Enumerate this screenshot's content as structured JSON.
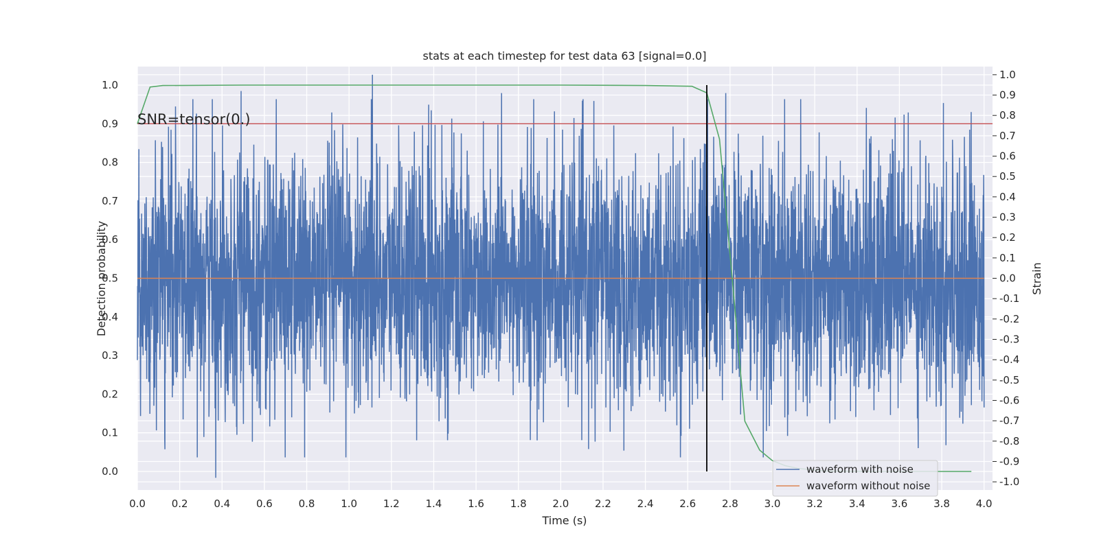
{
  "chart_data": {
    "type": "line",
    "title": "stats at each timestep for test data 63 [signal=0.0]",
    "xlabel": "Time (s)",
    "ylabel_left": "Detection probability",
    "ylabel_right": "Strain",
    "xlim": [
      0.0,
      4.04
    ],
    "ylim_left": [
      -0.048,
      1.048
    ],
    "ylim_right": [
      -1.04,
      1.04
    ],
    "xticks": [
      "0.0",
      "0.2",
      "0.4",
      "0.6",
      "0.8",
      "1.0",
      "1.2",
      "1.4",
      "1.6",
      "1.8",
      "2.0",
      "2.2",
      "2.4",
      "2.6",
      "2.8",
      "3.0",
      "3.2",
      "3.4",
      "3.6",
      "3.8",
      "4.0"
    ],
    "yticks_left": [
      "0.0",
      "0.1",
      "0.2",
      "0.3",
      "0.4",
      "0.5",
      "0.6",
      "0.7",
      "0.8",
      "0.9",
      "1.0"
    ],
    "yticks_right": [
      "-1.0",
      "-0.9",
      "-0.8",
      "-0.7",
      "-0.6",
      "-0.5",
      "-0.4",
      "-0.3",
      "-0.2",
      "-0.1",
      "0.0",
      "0.1",
      "0.2",
      "0.3",
      "0.4",
      "0.5",
      "0.6",
      "0.7",
      "0.8",
      "0.9",
      "1.0"
    ],
    "grid": true,
    "legend_position": "lower-right",
    "annotation": "SNR=tensor(0.)",
    "threshold": {
      "axis": "left",
      "y": 0.9,
      "color": "#c44e52"
    },
    "marker_vline": {
      "x": 2.69,
      "ymin": 0.0,
      "ymax": 1.0,
      "axis": "left",
      "color": "#000000"
    },
    "series": [
      {
        "name": "waveform with noise",
        "axis": "right",
        "color": "#4c72b0",
        "noise_std": 0.3,
        "x_range": [
          0.0,
          4.0
        ],
        "n_points": 4000,
        "peaks": [
          {
            "x": 0.37,
            "y": -0.98
          },
          {
            "x": 0.49,
            "y": 0.92
          },
          {
            "x": 0.79,
            "y": -0.88
          },
          {
            "x": 1.11,
            "y": 1.0
          },
          {
            "x": 1.72,
            "y": 0.91
          },
          {
            "x": 1.97,
            "y": 0.82
          },
          {
            "x": 2.78,
            "y": 0.91
          },
          {
            "x": 3.58,
            "y": 0.79
          },
          {
            "x": 0.13,
            "y": -0.84
          },
          {
            "x": 3.82,
            "y": -0.82
          }
        ]
      },
      {
        "name": "waveform without noise",
        "axis": "right",
        "color": "#dd8452",
        "x": [
          0.0,
          4.0
        ],
        "y": [
          0.0,
          0.0
        ]
      },
      {
        "name": "detection probability",
        "axis": "left",
        "color": "#55a868",
        "x": [
          0.0,
          0.06,
          0.12,
          0.5,
          1.0,
          1.5,
          2.0,
          2.4,
          2.62,
          2.69,
          2.75,
          2.81,
          2.87,
          2.94,
          3.0,
          3.06,
          3.12,
          3.19,
          3.25,
          3.5,
          3.75,
          3.94
        ],
        "y": [
          0.9,
          0.995,
          0.999,
          1.0,
          1.0,
          1.0,
          1.0,
          0.999,
          0.997,
          0.98,
          0.86,
          0.5,
          0.13,
          0.055,
          0.028,
          0.015,
          0.008,
          0.004,
          0.001,
          0.0,
          0.0,
          0.0
        ]
      }
    ]
  }
}
